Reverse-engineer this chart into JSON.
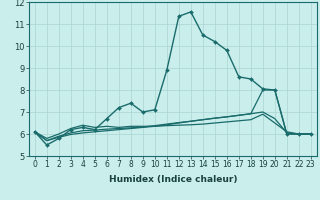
{
  "title": "",
  "xlabel": "Humidex (Indice chaleur)",
  "ylabel": "",
  "xlim": [
    -0.5,
    23.5
  ],
  "ylim": [
    5,
    12
  ],
  "yticks": [
    5,
    6,
    7,
    8,
    9,
    10,
    11,
    12
  ],
  "xticks": [
    0,
    1,
    2,
    3,
    4,
    5,
    6,
    7,
    8,
    9,
    10,
    11,
    12,
    13,
    14,
    15,
    16,
    17,
    18,
    19,
    20,
    21,
    22,
    23
  ],
  "bg_color": "#c9eeec",
  "grid_color": "#aad4d2",
  "line_color": "#1a6b6b",
  "marker_color": "#1a6b6b",
  "series": [
    [
      6.1,
      5.5,
      5.8,
      6.2,
      6.3,
      6.2,
      6.7,
      7.2,
      7.4,
      7.0,
      7.1,
      8.9,
      11.35,
      11.55,
      10.5,
      10.2,
      9.8,
      8.6,
      8.5,
      8.05,
      8.0,
      6.0,
      6.0,
      6.0
    ],
    [
      6.1,
      5.8,
      6.0,
      6.25,
      6.4,
      6.3,
      6.35,
      6.3,
      6.35,
      6.35,
      6.35,
      6.38,
      6.4,
      6.42,
      6.45,
      6.5,
      6.55,
      6.6,
      6.65,
      6.9,
      6.5,
      6.1,
      6.0,
      6.0
    ],
    [
      6.1,
      5.7,
      5.9,
      6.05,
      6.15,
      6.18,
      6.22,
      6.25,
      6.28,
      6.32,
      6.38,
      6.45,
      6.52,
      6.58,
      6.65,
      6.72,
      6.78,
      6.85,
      6.92,
      7.0,
      6.7,
      6.05,
      6.0,
      6.0
    ],
    [
      6.1,
      5.7,
      5.85,
      5.98,
      6.05,
      6.1,
      6.15,
      6.2,
      6.25,
      6.3,
      6.35,
      6.42,
      6.5,
      6.58,
      6.65,
      6.72,
      6.78,
      6.85,
      6.92,
      8.0,
      8.0,
      6.0,
      6.0,
      6.0
    ]
  ],
  "has_markers": [
    true,
    false,
    false,
    false
  ],
  "linewidths": [
    1.0,
    0.9,
    0.9,
    0.9
  ],
  "xlabel_fontsize": 6.5,
  "xlabel_fontweight": "bold",
  "tick_fontsize": 5.5,
  "ytick_fontsize": 6.0
}
